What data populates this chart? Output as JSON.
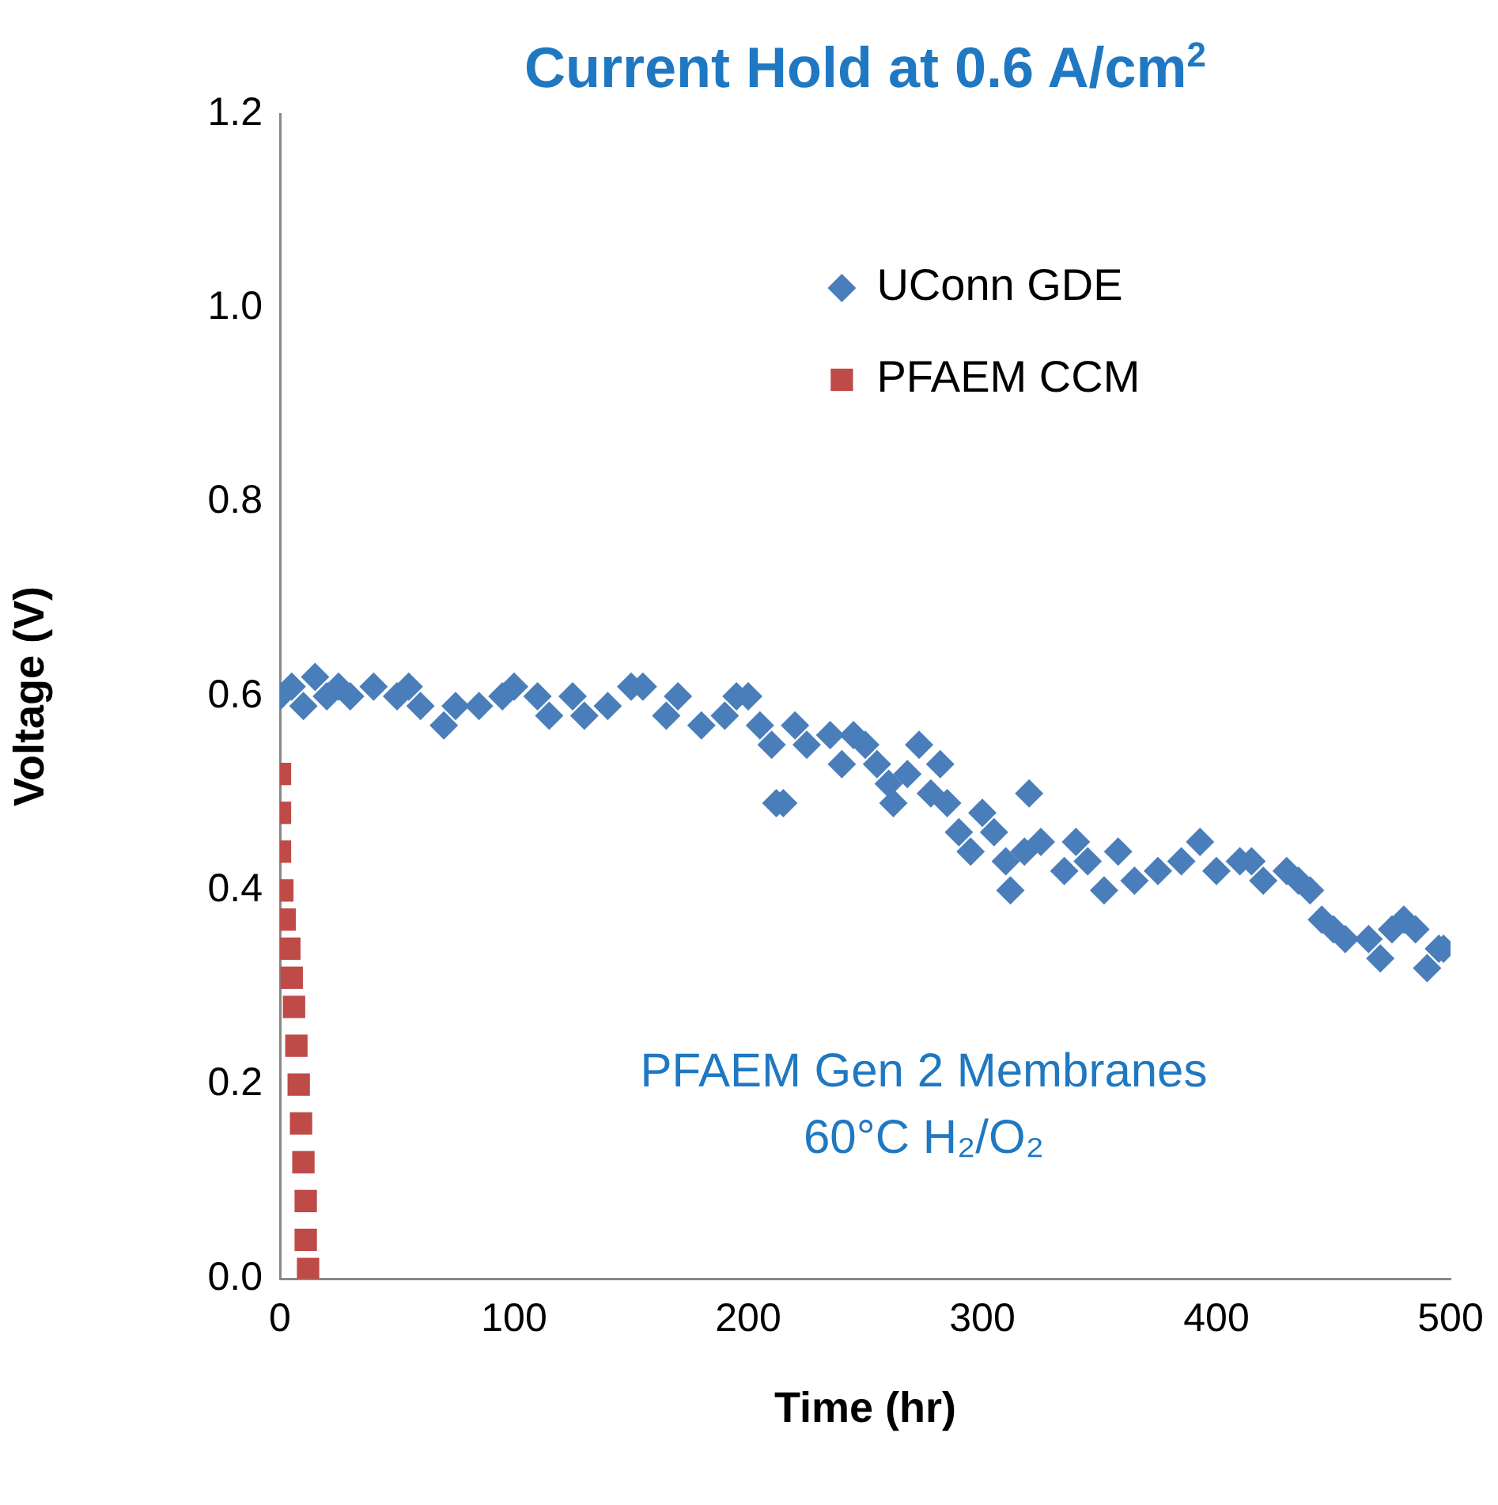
{
  "chart_data": {
    "type": "scatter",
    "title": "Current Hold at 0.6 A/cm$^{2}$",
    "xlabel": "Time (hr)",
    "ylabel": "Voltage (V)",
    "annotations": [
      "PFAEM Gen 2 Membranes",
      "60°C H₂/O₂"
    ],
    "xlim": [
      0,
      500
    ],
    "xticks": [
      0,
      100,
      200,
      300,
      400,
      500
    ],
    "ylim": [
      0,
      1.2
    ],
    "yticks": [
      {
        "value": 0,
        "label": "0.0"
      },
      {
        "value": 0.2,
        "label": "0.2"
      },
      {
        "value": 0.4,
        "label": "0.4"
      },
      {
        "value": 0.6,
        "label": "0.6"
      },
      {
        "value": 0.8,
        "label": "0.8"
      },
      {
        "value": 1,
        "label": "1.0"
      },
      {
        "value": 1.2,
        "label": "1.2"
      }
    ],
    "grid": false,
    "legend": "top right",
    "series": [
      {
        "name": "UConn GDE",
        "color": "#4a7ebb",
        "marker": "diamond",
        "x": [
          0,
          5,
          10,
          15,
          20,
          25,
          30,
          40,
          50,
          55,
          60,
          70,
          75,
          85,
          95,
          100,
          110,
          115,
          125,
          130,
          140,
          150,
          155,
          165,
          170,
          180,
          190,
          195,
          200,
          205,
          210,
          212,
          215,
          220,
          225,
          235,
          240,
          245,
          250,
          255,
          260,
          262,
          268,
          273,
          278,
          282,
          285,
          290,
          295,
          300,
          305,
          310,
          312,
          318,
          320,
          325,
          335,
          340,
          345,
          352,
          358,
          365,
          375,
          385,
          393,
          400,
          410,
          415,
          420,
          430,
          435,
          440,
          445,
          450,
          455,
          465,
          470,
          475,
          480,
          485,
          490,
          495,
          497
        ],
        "values": [
          0.6,
          0.61,
          0.59,
          0.62,
          0.6,
          0.61,
          0.6,
          0.61,
          0.6,
          0.61,
          0.59,
          0.57,
          0.59,
          0.59,
          0.6,
          0.61,
          0.6,
          0.58,
          0.6,
          0.58,
          0.59,
          0.61,
          0.61,
          0.58,
          0.6,
          0.57,
          0.58,
          0.6,
          0.6,
          0.57,
          0.55,
          0.49,
          0.49,
          0.57,
          0.55,
          0.56,
          0.53,
          0.56,
          0.55,
          0.53,
          0.51,
          0.49,
          0.52,
          0.55,
          0.5,
          0.53,
          0.49,
          0.46,
          0.44,
          0.48,
          0.46,
          0.43,
          0.4,
          0.44,
          0.5,
          0.45,
          0.42,
          0.45,
          0.43,
          0.4,
          0.44,
          0.41,
          0.42,
          0.43,
          0.45,
          0.42,
          0.43,
          0.43,
          0.41,
          0.42,
          0.41,
          0.4,
          0.37,
          0.36,
          0.35,
          0.35,
          0.33,
          0.36,
          0.37,
          0.36,
          0.32,
          0.34,
          0.34
        ]
      },
      {
        "name": "PFAEM CCM",
        "color": "#be4b48",
        "marker": "square",
        "x": [
          0,
          0,
          0,
          1,
          2,
          4,
          5,
          6,
          7,
          8,
          9,
          10,
          11,
          11,
          12
        ],
        "values": [
          0.52,
          0.48,
          0.44,
          0.4,
          0.37,
          0.34,
          0.31,
          0.28,
          0.24,
          0.2,
          0.16,
          0.12,
          0.08,
          0.04,
          0.01
        ]
      }
    ]
  }
}
